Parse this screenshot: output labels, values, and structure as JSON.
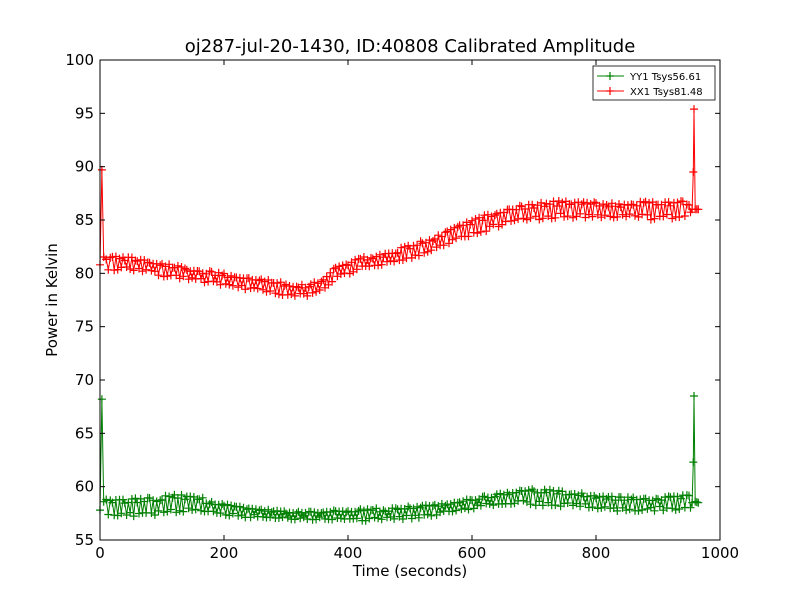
{
  "chart_data": {
    "type": "line",
    "title": "oj287-jul-20-1430, ID:40808 Calibrated Amplitude",
    "xlabel": "Time (seconds)",
    "ylabel": "Power in Kelvin",
    "xlim": [
      0,
      1000
    ],
    "ylim": [
      55,
      100
    ],
    "xticks": [
      0,
      200,
      400,
      600,
      800,
      1000
    ],
    "yticks": [
      55,
      60,
      65,
      70,
      75,
      80,
      85,
      90,
      95,
      100
    ],
    "grid": false,
    "legend_position": "top-right",
    "marker": "plus",
    "series": [
      {
        "name": "YY1 Tsys56.61",
        "color": "#008000",
        "x": [
          0,
          3,
          6,
          10,
          20,
          40,
          60,
          80,
          100,
          120,
          140,
          160,
          180,
          200,
          220,
          240,
          260,
          280,
          300,
          320,
          340,
          360,
          380,
          400,
          420,
          440,
          460,
          480,
          500,
          520,
          540,
          560,
          580,
          600,
          620,
          640,
          660,
          680,
          700,
          720,
          740,
          760,
          780,
          800,
          820,
          840,
          860,
          880,
          900,
          920,
          940,
          950,
          955,
          957,
          958,
          960,
          965
        ],
        "y": [
          57.8,
          68.2,
          58.2,
          58.0,
          58.1,
          58.0,
          58.1,
          58.1,
          58.2,
          58.4,
          58.4,
          58.3,
          58.0,
          57.8,
          57.7,
          57.6,
          57.5,
          57.4,
          57.3,
          57.3,
          57.3,
          57.3,
          57.3,
          57.3,
          57.3,
          57.4,
          57.4,
          57.5,
          57.6,
          57.7,
          57.8,
          58.0,
          58.2,
          58.4,
          58.6,
          58.8,
          58.9,
          59.0,
          59.0,
          59.0,
          58.9,
          58.8,
          58.7,
          58.6,
          58.5,
          58.4,
          58.3,
          58.3,
          58.4,
          58.5,
          58.5,
          58.6,
          58.5,
          62.3,
          68.5,
          58.6,
          58.5
        ],
        "spread": [
          0.3,
          0,
          0.5,
          0.8,
          0.8,
          0.9,
          0.9,
          0.9,
          0.9,
          0.9,
          0.9,
          0.8,
          0.7,
          0.6,
          0.6,
          0.5,
          0.4,
          0.4,
          0.4,
          0.4,
          0.4,
          0.4,
          0.5,
          0.5,
          0.6,
          0.6,
          0.6,
          0.6,
          0.6,
          0.6,
          0.6,
          0.5,
          0.5,
          0.5,
          0.5,
          0.5,
          0.6,
          0.7,
          0.8,
          0.8,
          0.8,
          0.8,
          0.7,
          0.7,
          0.7,
          0.7,
          0.7,
          0.7,
          0.7,
          0.6,
          0.8,
          0.8,
          0.3,
          0,
          0,
          0,
          0
        ]
      },
      {
        "name": "XX1 Tsys81.48",
        "color": "#ff0000",
        "x": [
          0,
          3,
          6,
          10,
          20,
          40,
          60,
          80,
          100,
          120,
          140,
          160,
          180,
          200,
          220,
          240,
          260,
          280,
          300,
          320,
          340,
          360,
          380,
          400,
          420,
          440,
          460,
          480,
          500,
          520,
          540,
          560,
          580,
          600,
          620,
          640,
          660,
          680,
          700,
          720,
          740,
          760,
          780,
          800,
          820,
          840,
          860,
          880,
          900,
          920,
          940,
          950,
          955,
          957,
          958,
          960,
          965
        ],
        "y": [
          80.8,
          89.7,
          81.2,
          81.0,
          81.0,
          80.9,
          80.8,
          80.6,
          80.4,
          80.2,
          80.0,
          79.8,
          79.6,
          79.4,
          79.2,
          79.0,
          78.9,
          78.7,
          78.5,
          78.4,
          78.4,
          79.0,
          80.0,
          80.5,
          80.9,
          81.1,
          81.3,
          81.6,
          82.0,
          82.4,
          82.8,
          83.3,
          83.8,
          84.2,
          84.7,
          85.1,
          85.4,
          85.6,
          85.8,
          85.9,
          86.0,
          86.0,
          86.0,
          86.0,
          85.9,
          85.9,
          85.9,
          85.9,
          85.9,
          85.9,
          85.9,
          86.0,
          86.0,
          89.5,
          95.4,
          86.0,
          86.0
        ],
        "spread": [
          0.3,
          0,
          0.5,
          0.7,
          0.7,
          0.7,
          0.7,
          0.7,
          0.7,
          0.7,
          0.6,
          0.6,
          0.6,
          0.6,
          0.6,
          0.6,
          0.6,
          0.6,
          0.6,
          0.6,
          0.6,
          0.6,
          0.6,
          0.6,
          0.6,
          0.6,
          0.6,
          0.7,
          0.7,
          0.7,
          0.7,
          0.7,
          0.8,
          0.8,
          0.8,
          0.8,
          0.8,
          0.8,
          0.8,
          0.8,
          0.8,
          0.8,
          0.8,
          0.7,
          0.7,
          0.7,
          0.8,
          0.9,
          0.9,
          0.8,
          0.9,
          0.9,
          0.3,
          0,
          0,
          0,
          0
        ]
      }
    ]
  }
}
